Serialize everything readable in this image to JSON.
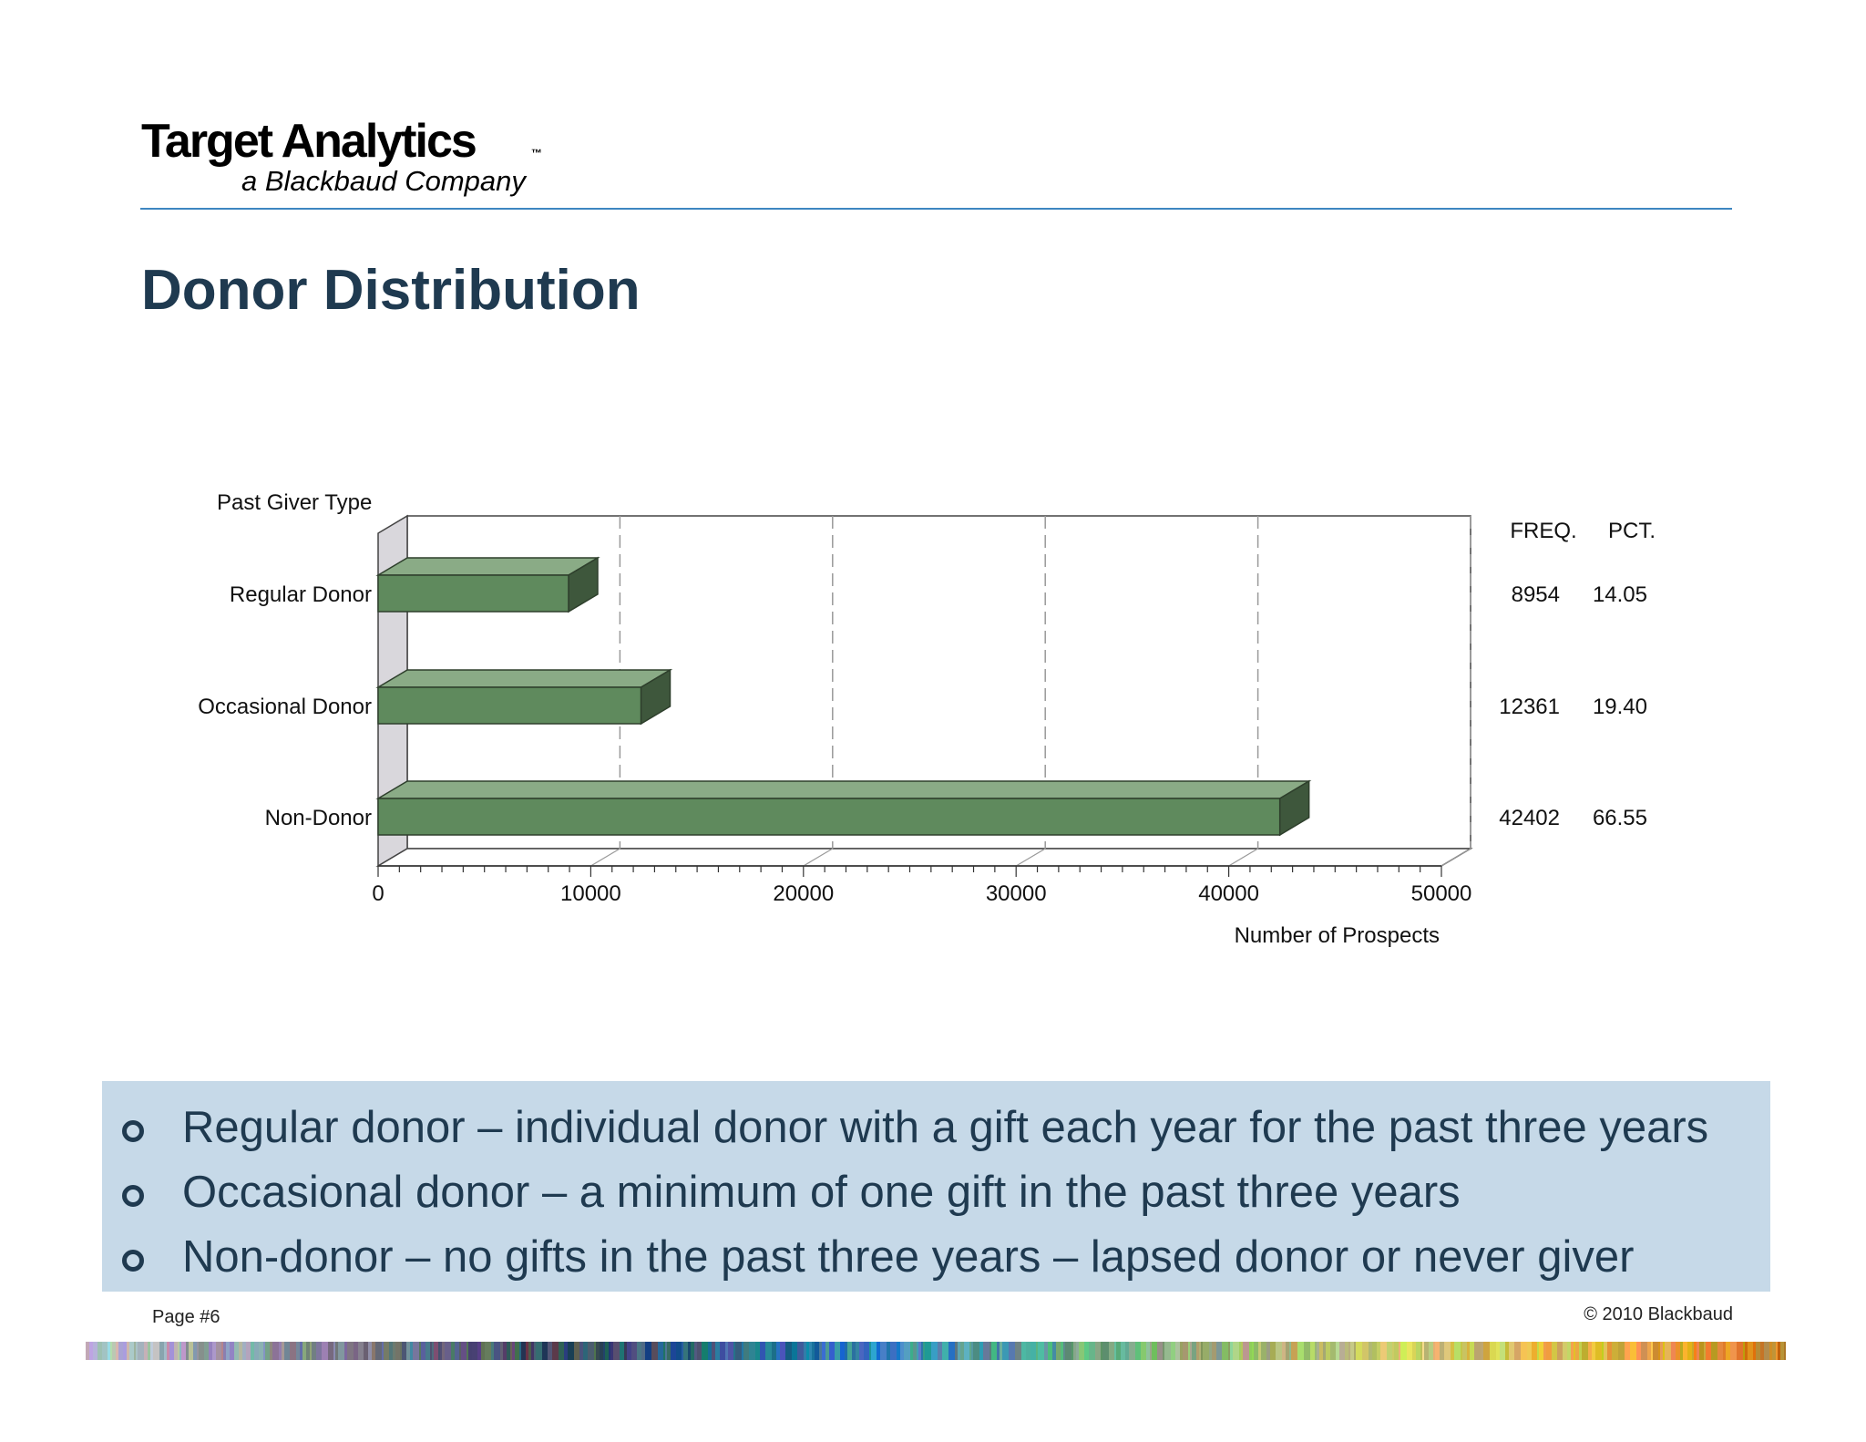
{
  "logo": {
    "main": "Target Analytics",
    "tm": "™",
    "sub": "a Blackbaud Company"
  },
  "slide": {
    "title": "Donor Distribution"
  },
  "chart_data": {
    "type": "bar",
    "orientation": "horizontal",
    "style": "3d",
    "categories": [
      "Regular Donor",
      "Occasional Donor",
      "Non-Donor"
    ],
    "values": [
      8954,
      12361,
      42402
    ],
    "ylabel": "Past Giver Type",
    "xlabel": "Number of Prospects",
    "xlim": [
      0,
      50000
    ],
    "xticks": [
      0,
      10000,
      20000,
      30000,
      40000,
      50000
    ],
    "grid": "vertical dashed",
    "bar_color": "#5f8a5d",
    "table": {
      "headers": [
        "FREQ.",
        "PCT."
      ],
      "rows": [
        [
          "8954",
          "14.05"
        ],
        [
          "12361",
          "19.40"
        ],
        [
          "42402",
          "66.55"
        ]
      ]
    }
  },
  "bullets": [
    "Regular donor – individual donor with a gift each year for the past three years",
    "Occasional donor – a minimum of one gift in the past three years",
    "Non-donor – no gifts in the past three years – lapsed donor or never giver"
  ],
  "footer": {
    "page": "Page #6",
    "copyright": "© 2010 Blackbaud"
  }
}
